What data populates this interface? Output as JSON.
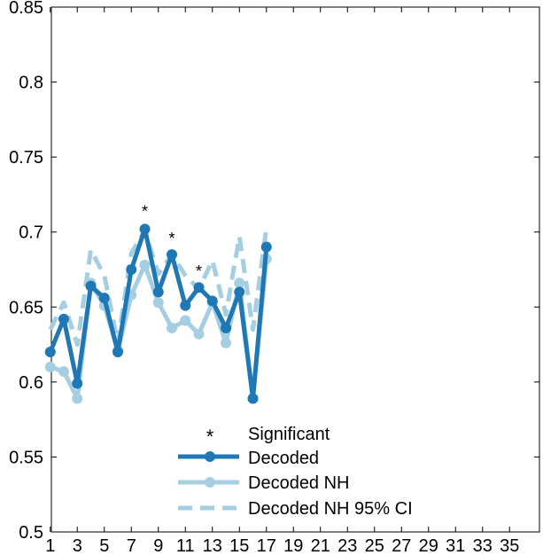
{
  "chart_data": {
    "type": "line",
    "x_ticks": [
      1,
      3,
      5,
      7,
      9,
      11,
      13,
      15,
      17,
      19,
      21,
      23,
      25,
      27,
      29,
      31,
      33,
      35
    ],
    "x_tick_labels": [
      "1",
      "3",
      "5",
      "7",
      "9",
      "11",
      "13",
      "15",
      "17",
      "19",
      "21",
      "23",
      "25",
      "27",
      "29",
      "31",
      "33",
      "35"
    ],
    "y_ticks": [
      0.5,
      0.55,
      0.6,
      0.65,
      0.7,
      0.75,
      0.8,
      0.85
    ],
    "y_tick_labels": [
      "0.5",
      "0.55",
      "0.6",
      "0.65",
      "0.7",
      "0.75",
      "0.8",
      "0.85"
    ],
    "xlim": [
      0,
      36
    ],
    "ylim": [
      0.5,
      0.85
    ],
    "legend_position": "bottom-center",
    "series": [
      {
        "name": "Decoded NH 95% CI",
        "style": "dashed",
        "color": "#a6cee3",
        "x": [
          1,
          2,
          3,
          4,
          5,
          6,
          7,
          8,
          9,
          10,
          11,
          12,
          13,
          14,
          15,
          16,
          17
        ],
        "y": [
          0.635,
          0.653,
          0.625,
          0.688,
          0.671,
          0.626,
          0.686,
          0.701,
          0.672,
          0.685,
          0.671,
          0.662,
          0.681,
          0.645,
          0.697,
          0.635,
          0.703
        ]
      },
      {
        "name": "Decoded NH",
        "style": "solid-marker",
        "color": "#a6cee3",
        "x": [
          1,
          2,
          3,
          4,
          5,
          6,
          7,
          8,
          9,
          10,
          11,
          12,
          13,
          14,
          15,
          16,
          17
        ],
        "y": [
          0.61,
          0.607,
          0.589,
          0.666,
          0.651,
          0.621,
          0.658,
          0.678,
          0.653,
          0.636,
          0.641,
          0.632,
          0.653,
          0.626,
          0.666,
          0.589,
          0.682
        ]
      },
      {
        "name": "Decoded",
        "style": "solid-marker",
        "color": "#1f78b4",
        "x": [
          1,
          2,
          3,
          4,
          5,
          6,
          7,
          8,
          9,
          10,
          11,
          12,
          13,
          14,
          15,
          16,
          17
        ],
        "y": [
          0.62,
          0.642,
          0.599,
          0.664,
          0.656,
          0.62,
          0.675,
          0.702,
          0.66,
          0.685,
          0.651,
          0.663,
          0.654,
          0.636,
          0.66,
          0.589,
          0.69
        ]
      }
    ],
    "significant": {
      "name": "Significant",
      "color": "#000000",
      "x": [
        8,
        10,
        12
      ],
      "y": [
        0.715,
        0.697,
        0.675
      ]
    },
    "legend": [
      "Significant",
      "Decoded",
      "Decoded NH",
      "Decoded NH 95% CI"
    ]
  }
}
